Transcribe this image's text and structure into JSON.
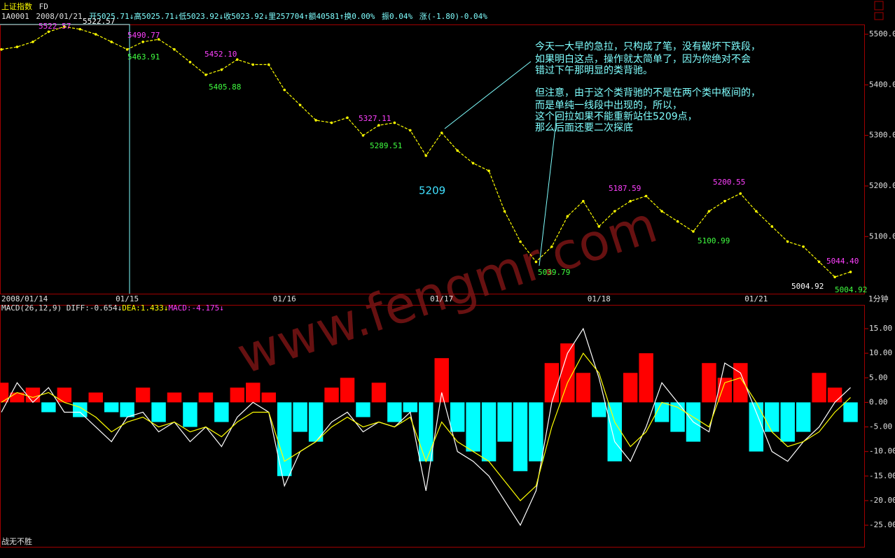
{
  "header": {
    "title": "上证指数",
    "tag": "FD",
    "quote": [
      "1A0001",
      "2008/01/21",
      "开5025.71↓高5025.71↓低5023.92↓收5023.92↓里257704↑额40581↑换0.00%",
      "振0.04%",
      "涨(-1.80)-0.04%"
    ]
  },
  "macd_header": [
    "MACD(26,12,9)",
    "DIFF:-0.654↓",
    "DEA:1.433↓",
    "MACD:-4.175↓"
  ],
  "chart_data": [
    {
      "type": "line",
      "categories": [
        "2008/01/14",
        null,
        null,
        null,
        null,
        null,
        null,
        null,
        "01/15",
        null,
        null,
        null,
        null,
        null,
        null,
        null,
        null,
        null,
        "01/16",
        null,
        null,
        null,
        null,
        null,
        null,
        null,
        null,
        null,
        "01/17",
        null,
        null,
        null,
        null,
        null,
        null,
        null,
        null,
        null,
        "01/18",
        null,
        null,
        null,
        null,
        null,
        null,
        null,
        null,
        null,
        "01/21",
        null,
        null,
        null,
        null,
        null,
        null
      ],
      "series": [
        {
          "color": "#ffff00",
          "values": [
            5470,
            5475,
            5485,
            5505,
            5515,
            5510,
            5500,
            5485,
            5470,
            5485,
            5490,
            5470,
            5445,
            5420,
            5430,
            5450,
            5440,
            5440,
            5390,
            5360,
            5330,
            5325,
            5335,
            5300,
            5320,
            5325,
            5310,
            5260,
            5305,
            5270,
            5245,
            5230,
            5150,
            5090,
            5050,
            5080,
            5140,
            5170,
            5120,
            5150,
            5170,
            5180,
            5150,
            5130,
            5110,
            5150,
            5170,
            5185,
            5150,
            5120,
            5090,
            5080,
            5050,
            5020,
            5030
          ]
        }
      ],
      "ylim": [
        4987,
        5518
      ],
      "yticks": [
        {
          "value": 5100,
          "label": "5100.0"
        },
        {
          "value": 5200,
          "label": "5200.0"
        },
        {
          "value": 5300,
          "label": "5300.0"
        },
        {
          "value": 5400,
          "label": "5400.0"
        },
        {
          "value": 5500,
          "label": "5500.0"
        }
      ],
      "grid": false,
      "period_label": "1分钟",
      "annotations": [
        {
          "text": "5522.57",
          "color": "#ffffff"
        },
        {
          "text": "5522.57",
          "color": "#ff40ff"
        },
        {
          "text": "5490.77",
          "color": "#ff40ff"
        },
        {
          "text": "5463.91",
          "color": "#40ff40"
        },
        {
          "text": "5452.10",
          "color": "#ff40ff"
        },
        {
          "text": "5405.88",
          "color": "#40ff40"
        },
        {
          "text": "5327.11",
          "color": "#ff40ff"
        },
        {
          "text": "5289.51",
          "color": "#40ff40"
        },
        {
          "text": "5209",
          "color": "#40e0ff"
        },
        {
          "text": "5187.59",
          "color": "#ff40ff"
        },
        {
          "text": "5039.79",
          "color": "#40ff40"
        },
        {
          "text": "5200.55",
          "color": "#ff40ff"
        },
        {
          "text": "5100.99",
          "color": "#40ff40"
        },
        {
          "text": "5044.40",
          "color": "#ff40ff"
        },
        {
          "text": "5004.92",
          "color": "#ffffff"
        },
        {
          "text": "5004.92",
          "color": "#40ff40"
        }
      ],
      "comment": [
        "今天一大早的急拉，只构成了笔，没有破坏下跌段，",
        "如果明白这点，操作就太简单了，因为你绝对不会",
        "错过下午那明显的类背驰。",
        "但注意，由于这个类背驰的不是在两个类中枢间的，",
        "而是单纯一线段中出现的，所以，",
        "这个回拉如果不能重新站住5209点，",
        "那么后面还要二次探底"
      ]
    },
    {
      "type": "bar",
      "series": [
        {
          "color": "#ff0000",
          "negative_color": "#00ffff",
          "values": [
            4,
            2,
            3,
            -2,
            3,
            -3,
            2,
            -2,
            -3,
            3,
            -4,
            2,
            -5,
            2,
            -4,
            3,
            4,
            2,
            -15,
            -6,
            -8,
            3,
            5,
            -3,
            4,
            -4,
            -2,
            -12,
            9,
            -6,
            -10,
            -12,
            -8,
            -14,
            -12,
            8,
            12,
            6,
            -3,
            -12,
            6,
            10,
            -4,
            -6,
            -8,
            8,
            5,
            8,
            -10,
            -6,
            -8,
            -6,
            6,
            3,
            -4
          ]
        },
        {
          "type": "line",
          "color": "#ffffff",
          "values": [
            -2,
            4,
            0,
            3,
            -2,
            -2,
            -5,
            -8,
            -3,
            -2,
            -6,
            -4,
            -8,
            -5,
            -9,
            -3,
            0,
            -2,
            -17,
            -10,
            -8,
            -4,
            -2,
            -6,
            -4,
            -5,
            -2,
            -18,
            2,
            -10,
            -12,
            -15,
            -20,
            -25,
            -18,
            0,
            10,
            15,
            5,
            -8,
            -12,
            -5,
            4,
            0,
            -4,
            -6,
            8,
            6,
            -2,
            -10,
            -12,
            -8,
            -5,
            0,
            3
          ]
        },
        {
          "type": "line",
          "color": "#ffff00",
          "values": [
            0,
            2,
            1,
            2,
            0,
            -1,
            -3,
            -6,
            -4,
            -3,
            -5,
            -4,
            -6,
            -5,
            -7,
            -4,
            -2,
            -2,
            -12,
            -10,
            -8,
            -5,
            -3,
            -5,
            -4,
            -5,
            -3,
            -12,
            -4,
            -8,
            -10,
            -12,
            -16,
            -20,
            -17,
            -5,
            4,
            10,
            6,
            -4,
            -9,
            -6,
            0,
            -1,
            -3,
            -5,
            4,
            5,
            0,
            -6,
            -9,
            -8,
            -6,
            -2,
            1
          ]
        }
      ],
      "ylim": [
        -29.4,
        19.7
      ],
      "yticks": [
        {
          "value": -25,
          "label": "-25.00"
        },
        {
          "value": -20,
          "label": "-20.00"
        },
        {
          "value": -15,
          "label": "-15.00"
        },
        {
          "value": -10,
          "label": "-10.00"
        },
        {
          "value": -5,
          "label": "-5.00"
        },
        {
          "value": 0,
          "label": "0.00"
        },
        {
          "value": 5,
          "label": "5.00"
        },
        {
          "value": 10,
          "label": "10.00"
        },
        {
          "value": 15,
          "label": "15.00"
        }
      ],
      "grid": false
    }
  ],
  "watermark": "www.fengmr.com",
  "footer": "战无不胜"
}
